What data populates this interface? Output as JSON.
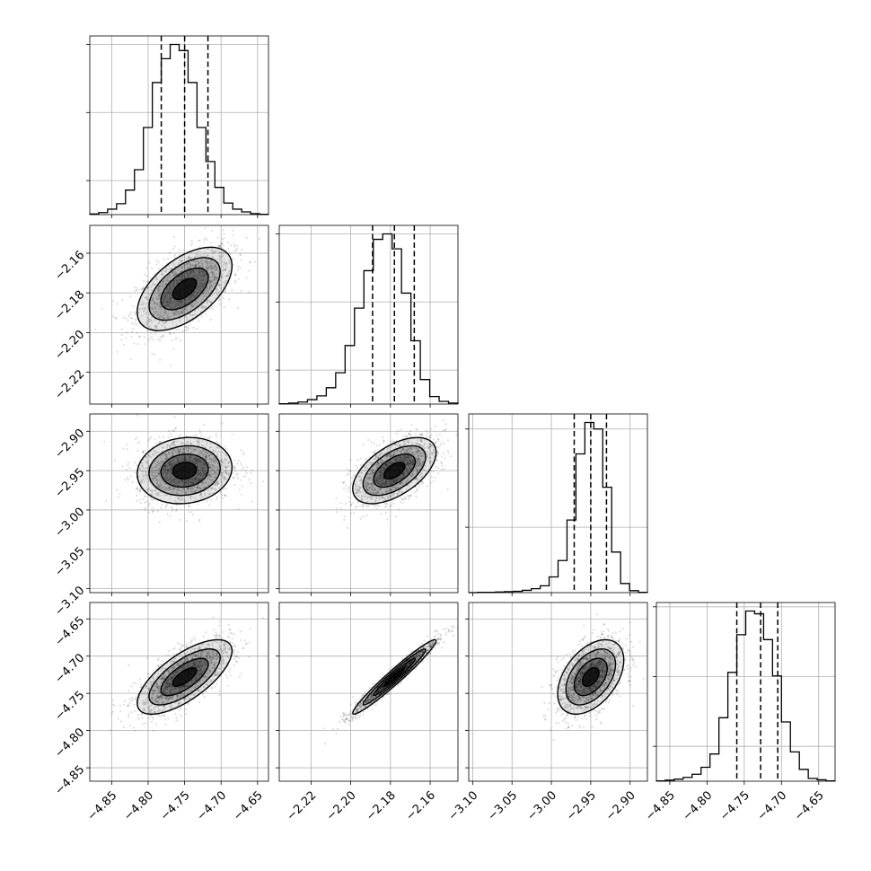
{
  "chart_data": {
    "type": "corner",
    "description_level": "posterior samples",
    "parameters": [
      {
        "range": [
          -4.88,
          -4.635
        ],
        "ticks": [
          -4.85,
          -4.8,
          -4.75,
          -4.7,
          -4.65
        ],
        "tick_labels": [
          "−4.85",
          "−4.80",
          "−4.75",
          "−4.70",
          "−4.65"
        ],
        "quantiles": [
          -4.782,
          -4.75,
          -4.718
        ],
        "median": -4.75,
        "sigma": 0.0325,
        "hist_counts": [
          2,
          6,
          16,
          32,
          72,
          132,
          256,
          388,
          458,
          500,
          482,
          388,
          256,
          156,
          80,
          34,
          16,
          8,
          3,
          1
        ],
        "hist_max_ticks": [
          100,
          300,
          500
        ]
      },
      {
        "range": [
          -2.236,
          -2.146
        ],
        "ticks": [
          -2.22,
          -2.2,
          -2.18,
          -2.16
        ],
        "tick_labels": [
          "−2.22",
          "−2.20",
          "−2.18",
          "−2.16"
        ],
        "quantiles": [
          -2.189,
          -2.178,
          -2.168
        ],
        "median": -2.178,
        "sigma": 0.0105,
        "hist_counts": [
          1,
          3,
          6,
          13,
          24,
          48,
          92,
          172,
          282,
          392,
          484,
          500,
          456,
          326,
          186,
          72,
          22,
          8,
          3
        ],
        "hist_max_ticks": [
          100,
          300,
          500
        ]
      },
      {
        "range": [
          -3.105,
          -2.878
        ],
        "ticks": [
          -3.1,
          -3.05,
          -3.0,
          -2.95,
          -2.9
        ],
        "tick_labels": [
          "−3.10",
          "−3.05",
          "−3.00",
          "−2.95",
          "−2.90"
        ],
        "quantiles": [
          -2.971,
          -2.95,
          -2.93
        ],
        "median": -2.95,
        "sigma": 0.021,
        "hist_counts": [
          0,
          1,
          1,
          2,
          3,
          4,
          7,
          12,
          21,
          48,
          98,
          222,
          424,
          520,
          500,
          322,
          124,
          28,
          6,
          1
        ],
        "hist_max_ticks": [
          200,
          500
        ]
      },
      {
        "range": [
          -4.868,
          -4.628
        ],
        "ticks": [
          -4.85,
          -4.8,
          -4.75,
          -4.7,
          -4.65
        ],
        "tick_labels": [
          "−4.85",
          "−4.80",
          "−4.75",
          "−4.70",
          "−4.65"
        ],
        "quantiles": [
          -4.76,
          -4.728,
          -4.705
        ],
        "median": -4.728,
        "sigma": 0.025,
        "hist_counts": [
          1,
          3,
          6,
          11,
          20,
          40,
          78,
          182,
          312,
          420,
          488,
          480,
          406,
          302,
          170,
          84,
          34,
          8,
          4,
          1
        ],
        "hist_max_ticks": [
          100,
          300,
          500
        ]
      }
    ],
    "correlations": [
      {
        "i": 1,
        "j": 0,
        "rho": 0.55
      },
      {
        "i": 2,
        "j": 0,
        "rho": 0.1
      },
      {
        "i": 2,
        "j": 1,
        "rho": 0.55
      },
      {
        "i": 3,
        "j": 0,
        "rho": 0.7
      },
      {
        "i": 3,
        "j": 1,
        "rho": 0.97
      },
      {
        "i": 3,
        "j": 2,
        "rho": 0.45
      }
    ],
    "contour_levels_sigma": [
      0.5,
      1.0,
      1.5,
      2.0
    ],
    "grid": true,
    "colors": {
      "line": "#000000",
      "grid": "#b0b0b0",
      "background": "#ffffff"
    }
  }
}
